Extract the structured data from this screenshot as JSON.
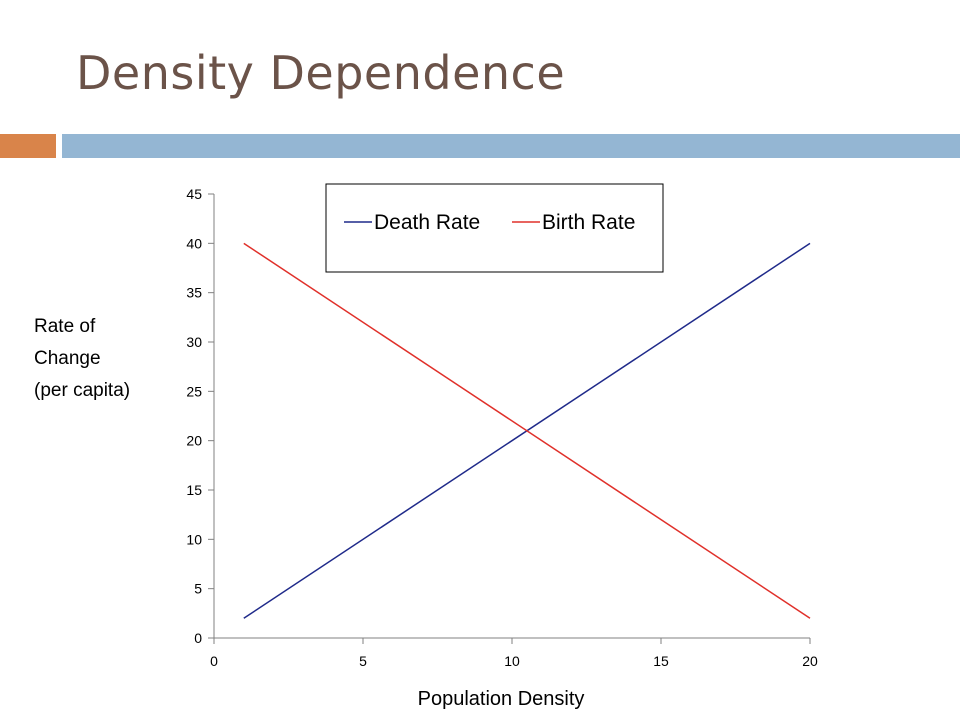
{
  "slide": {
    "title": "Density Dependence",
    "accent_colors": {
      "orange": "#d9844a",
      "blue": "#94b6d3"
    }
  },
  "chart_data": {
    "type": "line",
    "title": "",
    "xlabel": "Population Density",
    "ylabel_lines": [
      "Rate of",
      "Change",
      "(per capita)"
    ],
    "xlim": [
      0,
      20
    ],
    "ylim": [
      0,
      45
    ],
    "xticks": [
      0,
      5,
      10,
      15,
      20
    ],
    "yticks": [
      0,
      5,
      10,
      15,
      20,
      25,
      30,
      35,
      40,
      45
    ],
    "grid": false,
    "legend_position": "top",
    "series": [
      {
        "name": "Death Rate",
        "color": "#1f2a8a",
        "x": [
          1,
          20
        ],
        "y": [
          2,
          40
        ]
      },
      {
        "name": "Birth Rate",
        "color": "#e0302a",
        "x": [
          1,
          20
        ],
        "y": [
          40,
          2
        ]
      }
    ]
  }
}
